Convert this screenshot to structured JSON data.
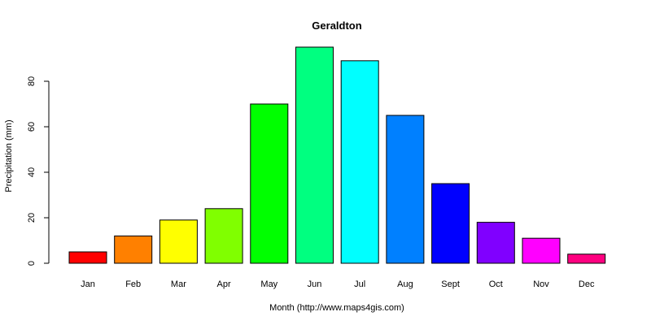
{
  "chart_data": {
    "type": "bar",
    "title": "Geraldton",
    "xlabel": "Month (http://www.maps4gis.com)",
    "ylabel": "Precipitation (mm)",
    "categories": [
      "Jan",
      "Feb",
      "Mar",
      "Apr",
      "May",
      "Jun",
      "Jul",
      "Aug",
      "Sept",
      "Oct",
      "Nov",
      "Dec"
    ],
    "values": [
      5,
      12,
      19,
      24,
      70,
      95,
      89,
      65,
      35,
      18,
      11,
      4
    ],
    "colors": [
      "#FF0000",
      "#FF8000",
      "#FFFF00",
      "#80FF00",
      "#00FF00",
      "#00FF80",
      "#00FFFF",
      "#0080FF",
      "#0000FF",
      "#8000FF",
      "#FF00FF",
      "#FF0080"
    ],
    "yticks": [
      "0",
      "20",
      "40",
      "60",
      "80"
    ],
    "ylim": [
      0,
      95
    ],
    "grid": false,
    "legend": "none"
  }
}
